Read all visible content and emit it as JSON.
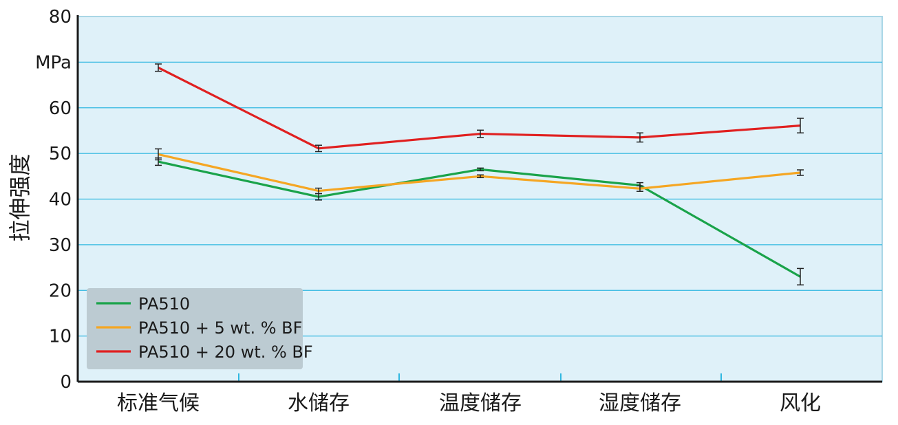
{
  "chart_data": {
    "type": "line",
    "ylabel": "拉伸强度",
    "unit_label": "MPa",
    "ylim": [
      0,
      80
    ],
    "yticks": [
      0,
      10,
      20,
      30,
      40,
      50,
      60,
      80
    ],
    "categories": [
      "标准气候",
      "水储存",
      "温度储存",
      "湿度储存",
      "风化"
    ],
    "grid": true,
    "legend_position": "bottom-left",
    "series": [
      {
        "name": "PA510",
        "color": "#1aa34a",
        "values": [
          48.2,
          40.5,
          46.5,
          43.0,
          23.0
        ],
        "errors": [
          0.8,
          0.7,
          0.3,
          0.6,
          1.8
        ]
      },
      {
        "name": "PA510 + 5 wt. % BF",
        "color": "#f5a623",
        "values": [
          49.8,
          41.8,
          45.0,
          42.3,
          45.8
        ],
        "errors": [
          1.2,
          0.6,
          0.3,
          0.6,
          0.6
        ]
      },
      {
        "name": "PA510 + 20 wt. % BF",
        "color": "#e02020",
        "values": [
          68.8,
          51.1,
          54.3,
          53.5,
          56.1
        ],
        "errors": [
          0.8,
          0.7,
          0.8,
          1.0,
          1.6
        ]
      }
    ]
  },
  "colors": {
    "plot_bg": "#dff1f9",
    "grid": "#2fb7e0",
    "border": "#1a1a1a",
    "legend_bg": "#bccbd2"
  }
}
